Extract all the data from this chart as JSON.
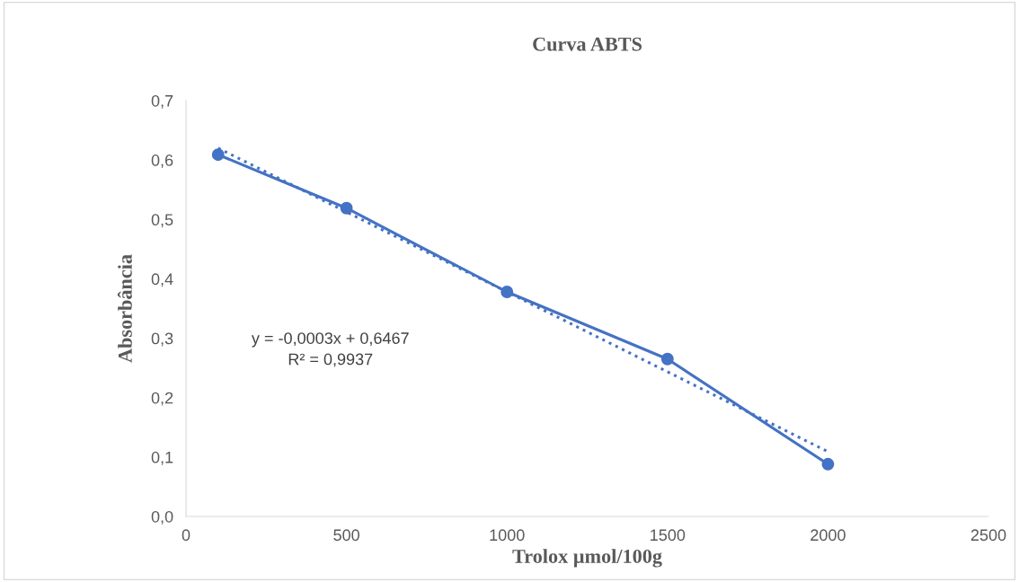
{
  "chart_data": {
    "type": "line",
    "title": "Curva ABTS",
    "xlabel": "Trolox µmol/100g",
    "ylabel": "Absorbância",
    "xlim": [
      0,
      2500
    ],
    "xticks": [
      0,
      500,
      1000,
      1500,
      2000,
      2500
    ],
    "ylim": [
      0,
      0.7
    ],
    "yticks": [
      {
        "value": 0,
        "label": "0,0"
      },
      {
        "value": 0.1,
        "label": "0,1"
      },
      {
        "value": 0.2,
        "label": "0,2"
      },
      {
        "value": 0.3,
        "label": "0,3"
      },
      {
        "value": 0.4,
        "label": "0,4"
      },
      {
        "value": 0.5,
        "label": "0,5"
      },
      {
        "value": 0.6,
        "label": "0,6"
      },
      {
        "value": 0.7,
        "label": "0,7"
      }
    ],
    "grid": false,
    "series": [
      {
        "x": [
          100,
          500,
          1000,
          1500,
          2000
        ],
        "values": [
          0.609,
          0.519,
          0.378,
          0.265,
          0.088
        ],
        "color": "#4472c4",
        "marker": "circle",
        "line_style": "solid"
      },
      {
        "type": "line",
        "x": [
          100,
          2000
        ],
        "values": [
          0.62,
          0.109
        ],
        "color": "#4472c4",
        "marker": "none",
        "line_style": "dotted"
      }
    ],
    "annotations": [
      "y = -0,0003x + 0,6467\nR² = 0,9937"
    ]
  }
}
